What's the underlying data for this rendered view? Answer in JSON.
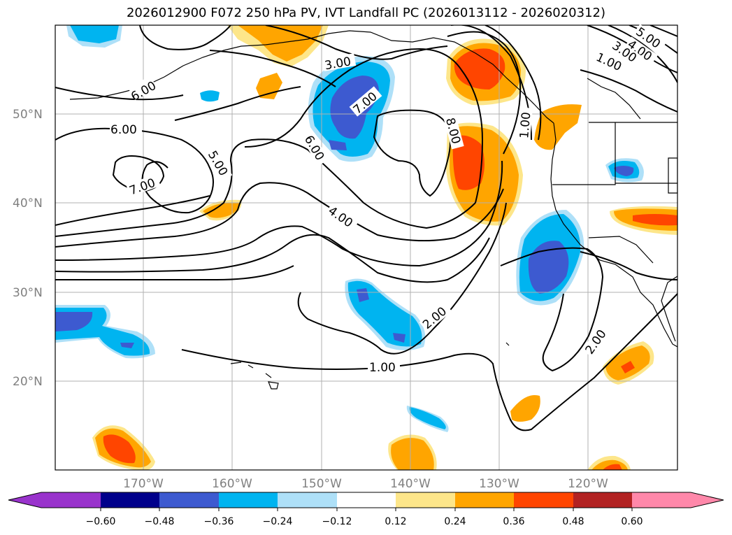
{
  "title": "2026012900 F072 250 hPa PV, IVT Landfall PC (2026013112 - 2026020312)",
  "map": {
    "lat_labels": [
      "50°N",
      "40°N",
      "30°N",
      "20°N"
    ],
    "lon_labels": [
      "170°W",
      "160°W",
      "150°W",
      "140°W",
      "130°W",
      "120°W"
    ],
    "contour_labels": [
      "6.00",
      "6.00",
      "7.00",
      "5.00",
      "3.00",
      "7.00",
      "6.00",
      "8.00",
      "4.00",
      "1.00",
      "5.00",
      "4.00",
      "3.00",
      "1.00",
      "2.00",
      "1.00",
      "2.00"
    ],
    "colors": {
      "neg_deep": "#3d5ad0",
      "neg_mid": "#00b4f0",
      "neg_light": "#aee0f8",
      "pos_light": "#fde68a",
      "pos_mid": "#ffa500",
      "pos_deep": "#ff4500"
    }
  },
  "colorbar": {
    "ticks": [
      "−0.60",
      "−0.48",
      "−0.36",
      "−0.24",
      "−0.12",
      "0.12",
      "0.24",
      "0.36",
      "0.48",
      "0.60"
    ],
    "colors": [
      "#9933cc",
      "#00008b",
      "#3d5ad0",
      "#00b4f0",
      "#aee0f8",
      "#ffffff",
      "#fde68a",
      "#ffa500",
      "#ff4500",
      "#b22222",
      "#ff88aa"
    ]
  }
}
